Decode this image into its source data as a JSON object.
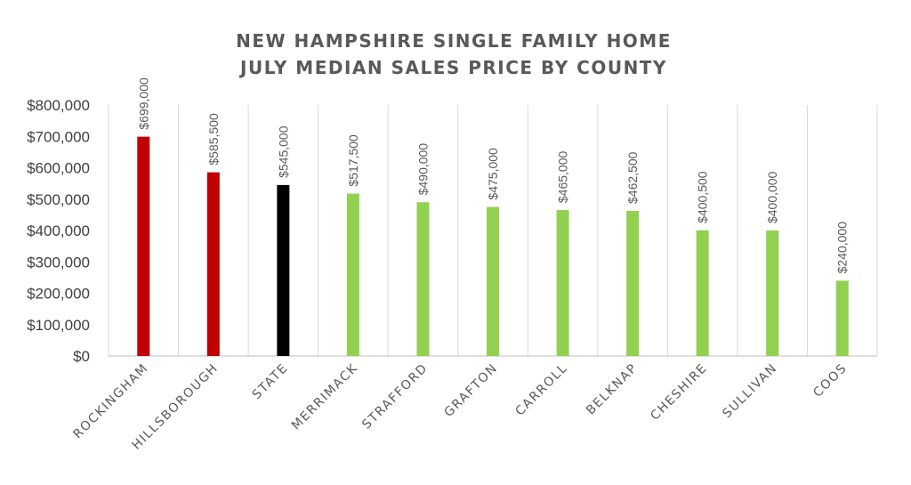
{
  "chart_data": {
    "type": "bar",
    "title_lines": [
      "NEW HAMPSHIRE SINGLE FAMILY HOME",
      "JULY MEDIAN SALES PRICE BY COUNTY"
    ],
    "categories": [
      "ROCKINGHAM",
      "HILLSBOROUGH",
      "STATE",
      "MERRIMACK",
      "STRAFFORD",
      "GRAFTON",
      "CARROLL",
      "BELKNAP",
      "CHESHIRE",
      "SULLIVAN",
      "COOS"
    ],
    "values": [
      699000,
      585500,
      545000,
      517500,
      490000,
      475000,
      465000,
      462500,
      400500,
      400000,
      240000
    ],
    "data_labels": [
      "$699,000",
      "$585,500",
      "$545,000",
      "$517,500",
      "$490,000",
      "$475,000",
      "$465,000",
      "$462,500",
      "$400,500",
      "$400,000",
      "$240,000"
    ],
    "bar_colors": [
      "#c00000",
      "#c00000",
      "#000000",
      "#92d050",
      "#92d050",
      "#92d050",
      "#92d050",
      "#92d050",
      "#92d050",
      "#92d050",
      "#92d050"
    ],
    "ylim": [
      0,
      800000
    ],
    "yticks": [
      0,
      100000,
      200000,
      300000,
      400000,
      500000,
      600000,
      700000,
      800000
    ],
    "ytick_labels": [
      "$0",
      "$100,000",
      "$200,000",
      "$300,000",
      "$400,000",
      "$500,000",
      "$600,000",
      "$700,000",
      "$800,000"
    ],
    "xlabel": "",
    "ylabel": "",
    "grid": "vertical category separators",
    "legend": "none"
  }
}
